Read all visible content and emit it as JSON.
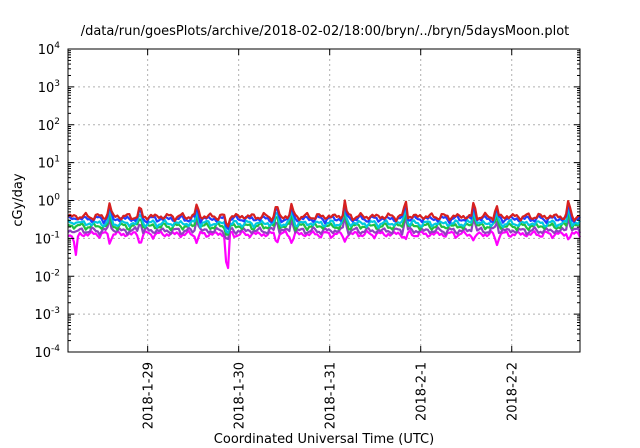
{
  "chart_data": {
    "type": "line",
    "title": "/data/run/goesPlots/archive/2018-02-02/18:00/bryn/../bryn/5daysMoon.plot",
    "xlabel": "Coordinated Universal Time (UTC)",
    "ylabel": "cGy/day",
    "y_scale": "log",
    "ylim": [
      0.0001,
      10000
    ],
    "y_ticks": [
      {
        "exp": "-4",
        "value": 0.0001
      },
      {
        "exp": "-3",
        "value": 0.001
      },
      {
        "exp": "-2",
        "value": 0.01
      },
      {
        "exp": "-1",
        "value": 0.1
      },
      {
        "exp": "0",
        "value": 1
      },
      {
        "exp": "1",
        "value": 10
      },
      {
        "exp": "2",
        "value": 100
      },
      {
        "exp": "3",
        "value": 1000
      },
      {
        "exp": "4",
        "value": 10000
      }
    ],
    "y_tick_base": "10",
    "xlim": [
      "2018-01-28T03:00",
      "2018-02-02T18:00"
    ],
    "x_ticks": [
      {
        "label": "2018-1-29",
        "value": "2018-01-29T00:00"
      },
      {
        "label": "2018-1-30",
        "value": "2018-01-30T00:00"
      },
      {
        "label": "2018-1-31",
        "value": "2018-01-31T00:00"
      },
      {
        "label": "2018-2-1",
        "value": "2018-02-01T00:00"
      },
      {
        "label": "2018-2-2",
        "value": "2018-02-02T00:00"
      }
    ],
    "grid": true,
    "legend": "none",
    "series": [
      {
        "color": "#d62020",
        "base": 0.38,
        "amp": 0.05,
        "phase": 0.0
      },
      {
        "color": "#2040ff",
        "base": 0.33,
        "amp": 0.045,
        "phase": 0.7
      },
      {
        "color": "#00c8e0",
        "base": 0.25,
        "amp": 0.035,
        "phase": 1.3
      },
      {
        "color": "#20c040",
        "base": 0.21,
        "amp": 0.025,
        "phase": 2.1
      },
      {
        "color": "#9040c0",
        "base": 0.16,
        "amp": 0.018,
        "phase": 2.9
      },
      {
        "color": "#ff00ff",
        "base": 0.13,
        "amp": 0.015,
        "phase": 3.6
      }
    ],
    "dips": [
      {
        "x": "2018-01-28T05:00",
        "value": 0.03
      },
      {
        "x": "2018-01-28T14:00",
        "value": 0.07
      },
      {
        "x": "2018-01-28T22:00",
        "value": 0.06
      },
      {
        "x": "2018-01-29T13:00",
        "value": 0.07
      },
      {
        "x": "2018-01-29T21:00",
        "value": 0.006
      },
      {
        "x": "2018-01-30T10:00",
        "value": 0.07
      },
      {
        "x": "2018-01-30T14:00",
        "value": 0.07
      },
      {
        "x": "2018-01-31T04:00",
        "value": 0.08
      },
      {
        "x": "2018-01-31T20:00",
        "value": 0.09
      },
      {
        "x": "2018-02-01T14:00",
        "value": 0.08
      },
      {
        "x": "2018-02-01T20:00",
        "value": 0.06
      },
      {
        "x": "2018-02-02T15:00",
        "value": 0.09
      }
    ]
  }
}
